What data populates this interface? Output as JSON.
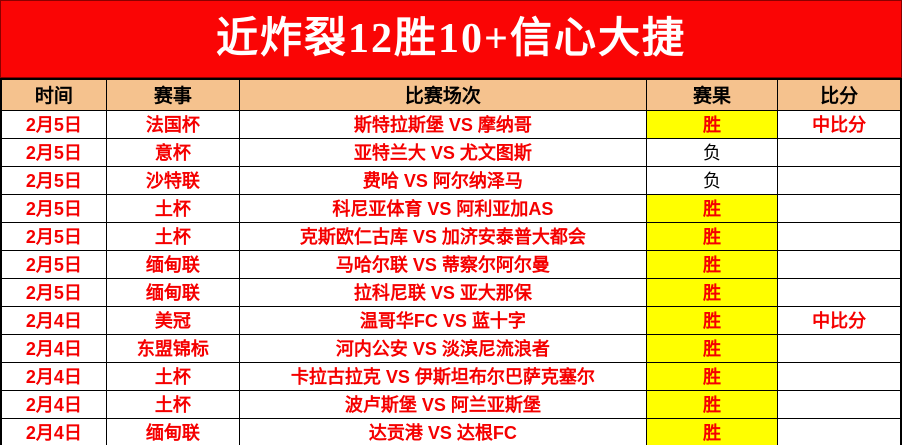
{
  "banner": {
    "title": "近炸裂12胜10+信心大捷",
    "bg_color": "#fa0505",
    "text_color": "#ffffff"
  },
  "table": {
    "headers": [
      "时间",
      "赛事",
      "比赛场次",
      "赛果",
      "比分"
    ],
    "header_bg_color": "#f5c28e",
    "win_bg_color": "#ffff00",
    "red_text_color": "#f50000",
    "rows": [
      {
        "date": "2月5日",
        "league": "法国杯",
        "match": "斯特拉斯堡 VS 摩纳哥",
        "result": "胜",
        "outcome": "win",
        "score": "中比分"
      },
      {
        "date": "2月5日",
        "league": "意杯",
        "match": "亚特兰大 VS 尤文图斯",
        "result": "负",
        "outcome": "lose",
        "score": ""
      },
      {
        "date": "2月5日",
        "league": "沙特联",
        "match": "费哈 VS 阿尔纳泽马",
        "result": "负",
        "outcome": "lose",
        "score": ""
      },
      {
        "date": "2月5日",
        "league": "土杯",
        "match": "科尼亚体育 VS 阿利亚加AS",
        "result": "胜",
        "outcome": "win",
        "score": ""
      },
      {
        "date": "2月5日",
        "league": "土杯",
        "match": "克斯欧仁古库 VS 加济安泰普大都会",
        "result": "胜",
        "outcome": "win",
        "score": ""
      },
      {
        "date": "2月5日",
        "league": "缅甸联",
        "match": "马哈尔联 VS 蒂察尔阿尔曼",
        "result": "胜",
        "outcome": "win",
        "score": ""
      },
      {
        "date": "2月5日",
        "league": "缅甸联",
        "match": "拉科尼联 VS 亚大那保",
        "result": "胜",
        "outcome": "win",
        "score": ""
      },
      {
        "date": "2月4日",
        "league": "美冠",
        "match": "温哥华FC VS 蓝十字",
        "result": "胜",
        "outcome": "win",
        "score": "中比分"
      },
      {
        "date": "2月4日",
        "league": "东盟锦标",
        "match": "河内公安 VS 淡滨尼流浪者",
        "result": "胜",
        "outcome": "win",
        "score": ""
      },
      {
        "date": "2月4日",
        "league": "土杯",
        "match": "卡拉古拉克 VS 伊斯坦布尔巴萨克塞尔",
        "result": "胜",
        "outcome": "win",
        "score": ""
      },
      {
        "date": "2月4日",
        "league": "土杯",
        "match": "波卢斯堡 VS 阿兰亚斯堡",
        "result": "胜",
        "outcome": "win",
        "score": ""
      },
      {
        "date": "2月4日",
        "league": "缅甸联",
        "match": "达贡港 VS 达根FC",
        "result": "胜",
        "outcome": "win",
        "score": ""
      }
    ]
  }
}
